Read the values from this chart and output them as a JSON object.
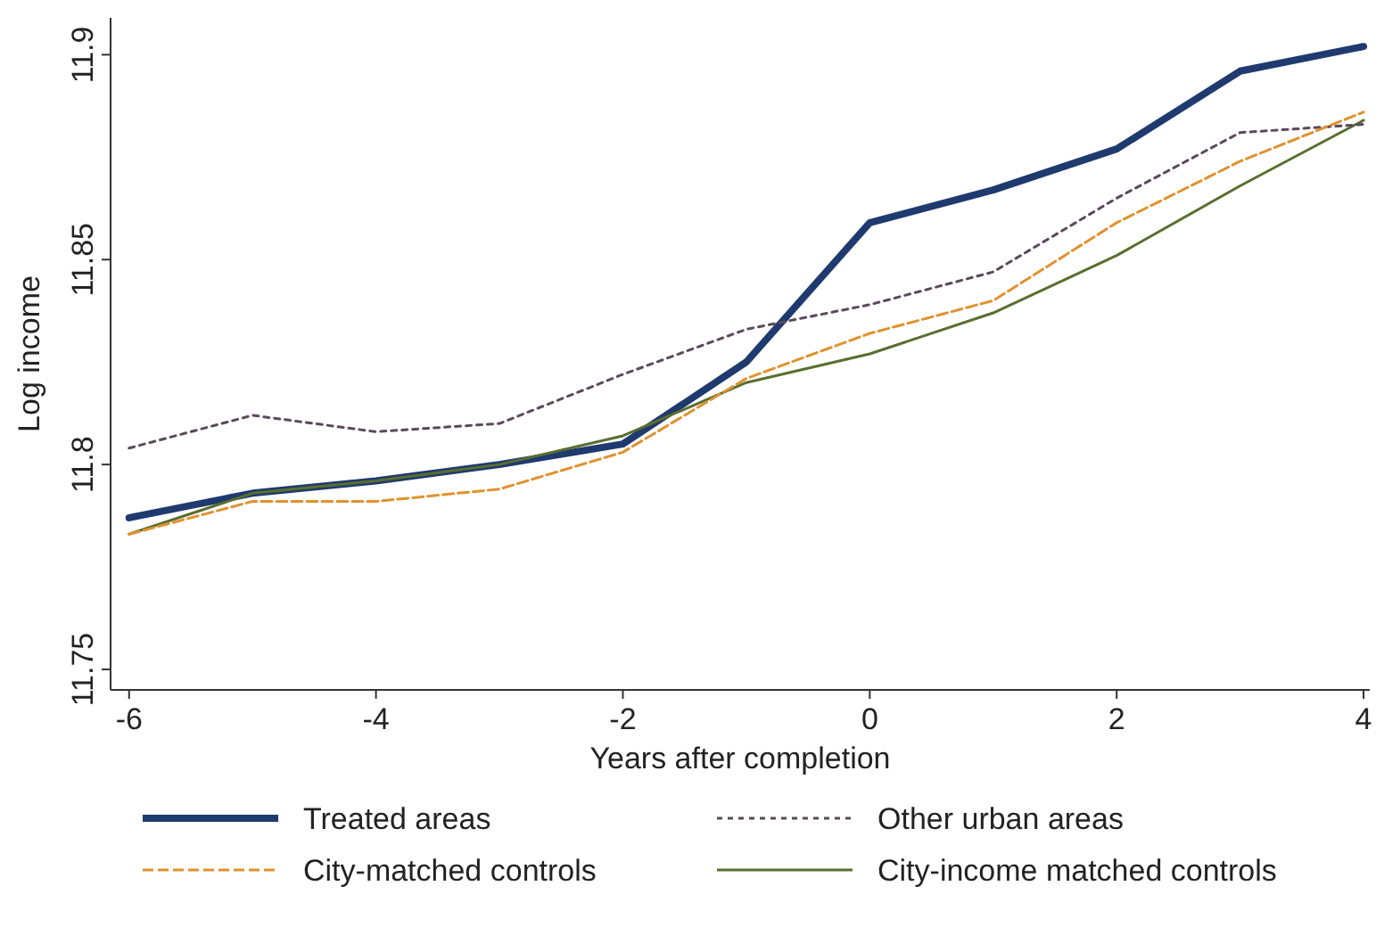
{
  "chart_data": {
    "type": "line",
    "xlabel": "Years after completion",
    "ylabel": "Log income",
    "x": [
      -6,
      -5,
      -4,
      -3,
      -2,
      -1,
      0,
      1,
      2,
      3,
      4
    ],
    "xlim": [
      -6.15,
      4.05
    ],
    "xticks": [
      -6,
      -4,
      -2,
      0,
      2,
      4
    ],
    "ylim": [
      11.745,
      11.909
    ],
    "yticks": [
      11.75,
      11.8,
      11.85,
      11.9
    ],
    "grid": false,
    "legend": "bottom",
    "series": [
      {
        "name": "Treated areas",
        "color": "#1f3a6e",
        "line_style": "solid",
        "values": [
          11.787,
          11.793,
          11.796,
          11.8,
          11.805,
          11.825,
          11.859,
          11.867,
          11.877,
          11.896,
          11.902
        ]
      },
      {
        "name": "Other urban areas",
        "color": "#5a4a5a",
        "line_style": "dotted",
        "values": [
          11.804,
          11.812,
          11.808,
          11.81,
          11.822,
          11.833,
          11.839,
          11.847,
          11.865,
          11.881,
          11.883
        ]
      },
      {
        "name": "City-matched controls",
        "color": "#e0922f",
        "line_style": "dashed",
        "values": [
          11.783,
          11.791,
          11.791,
          11.794,
          11.803,
          11.821,
          11.832,
          11.84,
          11.859,
          11.874,
          11.886
        ]
      },
      {
        "name": "City-income matched controls",
        "color": "#5a6e2e",
        "line_style": "solid",
        "values": [
          11.783,
          11.793,
          11.796,
          11.8,
          11.807,
          11.82,
          11.827,
          11.837,
          11.851,
          11.868,
          11.884
        ]
      }
    ]
  }
}
